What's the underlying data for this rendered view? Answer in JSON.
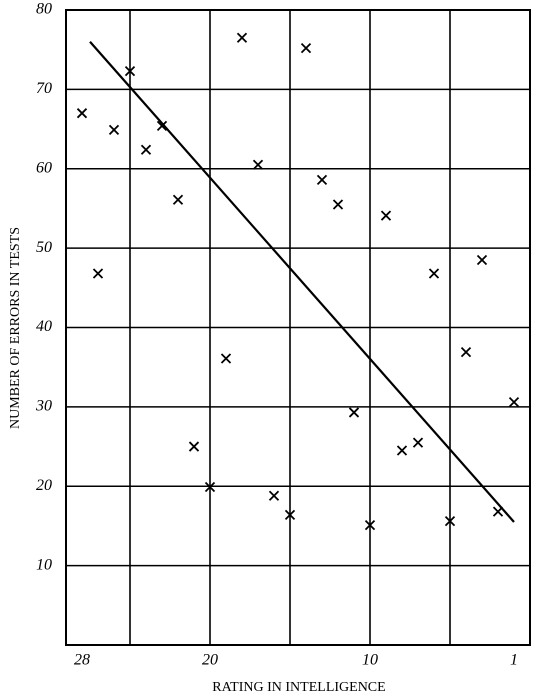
{
  "chart_data": {
    "type": "scatter",
    "xlabel": "RATING IN INTELLIGENCE",
    "ylabel": "NUMBER OF ERRORS IN TESTS",
    "x": [
      28,
      27,
      26,
      25,
      24,
      23,
      22,
      21,
      20,
      19,
      18,
      17,
      16,
      15,
      14,
      13,
      12,
      11,
      10,
      9,
      8,
      7,
      6,
      5,
      4,
      3,
      2,
      1
    ],
    "series": [
      {
        "color": "#000000",
        "values": [
          67.0,
          46.8,
          64.9,
          72.3,
          62.4,
          65.4,
          56.1,
          25.0,
          19.9,
          36.1,
          76.5,
          60.5,
          18.8,
          16.4,
          75.2,
          58.6,
          55.5,
          29.3,
          15.1,
          54.1,
          24.5,
          25.5,
          46.8,
          15.6,
          36.9,
          48.5,
          16.8,
          30.6
        ]
      }
    ],
    "trend_line": {
      "x": [
        27.5,
        1
      ],
      "y": [
        76,
        15.5
      ],
      "color": "#000000"
    },
    "xlim": [
      29,
      0
    ],
    "ylim": [
      0,
      80
    ],
    "xticks": [
      28,
      20,
      10,
      1
    ],
    "xgrid": [
      25,
      20,
      15,
      10,
      5
    ],
    "yticks": [
      10,
      20,
      30,
      40,
      50,
      60,
      70,
      80
    ],
    "grid": true
  }
}
